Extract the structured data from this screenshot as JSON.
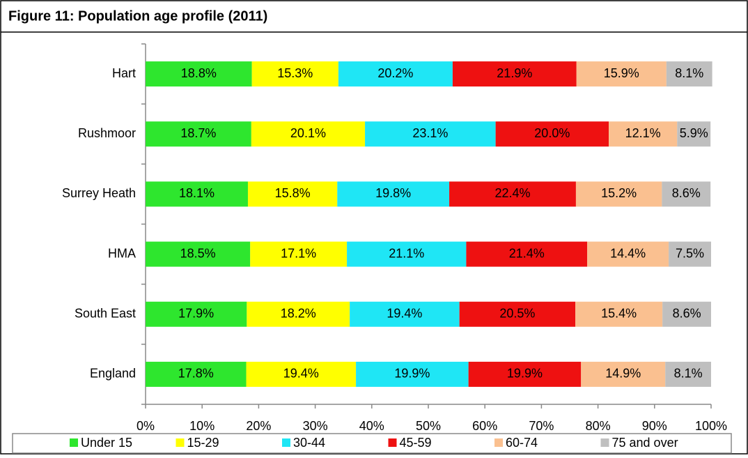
{
  "chart_data": {
    "type": "stacked-bar-horizontal",
    "title": "Figure 11: Population age profile (2011)",
    "categories": [
      "Hart",
      "Rushmoor",
      "Surrey Heath",
      "HMA",
      "South East",
      "England"
    ],
    "series": [
      {
        "name": "Under 15",
        "color": "#2ee62e",
        "values": [
          18.8,
          18.7,
          18.1,
          18.5,
          17.9,
          17.8
        ],
        "value_labels": [
          "18.8%",
          "18.7%",
          "18.1%",
          "18.5%",
          "17.9%",
          "17.8%"
        ]
      },
      {
        "name": "15-29",
        "color": "#ffff00",
        "values": [
          15.3,
          20.1,
          15.8,
          17.1,
          18.2,
          19.4
        ],
        "value_labels": [
          "15.3%",
          "20.1%",
          "15.8%",
          "17.1%",
          "18.2%",
          "19.4%"
        ]
      },
      {
        "name": "30-44",
        "color": "#1fe6f5",
        "values": [
          20.2,
          23.1,
          19.8,
          21.1,
          19.4,
          19.9
        ],
        "value_labels": [
          "20.2%",
          "23.1%",
          "19.8%",
          "21.1%",
          "19.4%",
          "19.9%"
        ]
      },
      {
        "name": "45-59",
        "color": "#ee1111",
        "values": [
          21.9,
          20.0,
          22.4,
          21.4,
          20.5,
          19.9
        ],
        "value_labels": [
          "21.9%",
          "20.0%",
          "22.4%",
          "21.4%",
          "20.5%",
          "19.9%"
        ]
      },
      {
        "name": "60-74",
        "color": "#fac090",
        "values": [
          15.9,
          12.1,
          15.2,
          14.4,
          15.4,
          14.9
        ],
        "value_labels": [
          "15.9%",
          "12.1%",
          "15.2%",
          "14.4%",
          "15.4%",
          "14.9%"
        ]
      },
      {
        "name": "75 and over",
        "color": "#bfbfbf",
        "values": [
          8.1,
          5.9,
          8.6,
          7.5,
          8.6,
          8.1
        ],
        "value_labels": [
          "8.1%",
          "5.9%",
          "8.6%",
          "7.5%",
          "8.6%",
          "8.1%"
        ]
      }
    ],
    "xlim": [
      0,
      100
    ],
    "xticks": [
      {
        "value": 0,
        "label": "0%"
      },
      {
        "value": 10,
        "label": "10%"
      },
      {
        "value": 20,
        "label": "20%"
      },
      {
        "value": 30,
        "label": "30%"
      },
      {
        "value": 40,
        "label": "40%"
      },
      {
        "value": 50,
        "label": "50%"
      },
      {
        "value": 60,
        "label": "60%"
      },
      {
        "value": 70,
        "label": "70%"
      },
      {
        "value": 80,
        "label": "80%"
      },
      {
        "value": 90,
        "label": "90%"
      },
      {
        "value": 100,
        "label": "100%"
      }
    ],
    "legend": "bottom"
  }
}
